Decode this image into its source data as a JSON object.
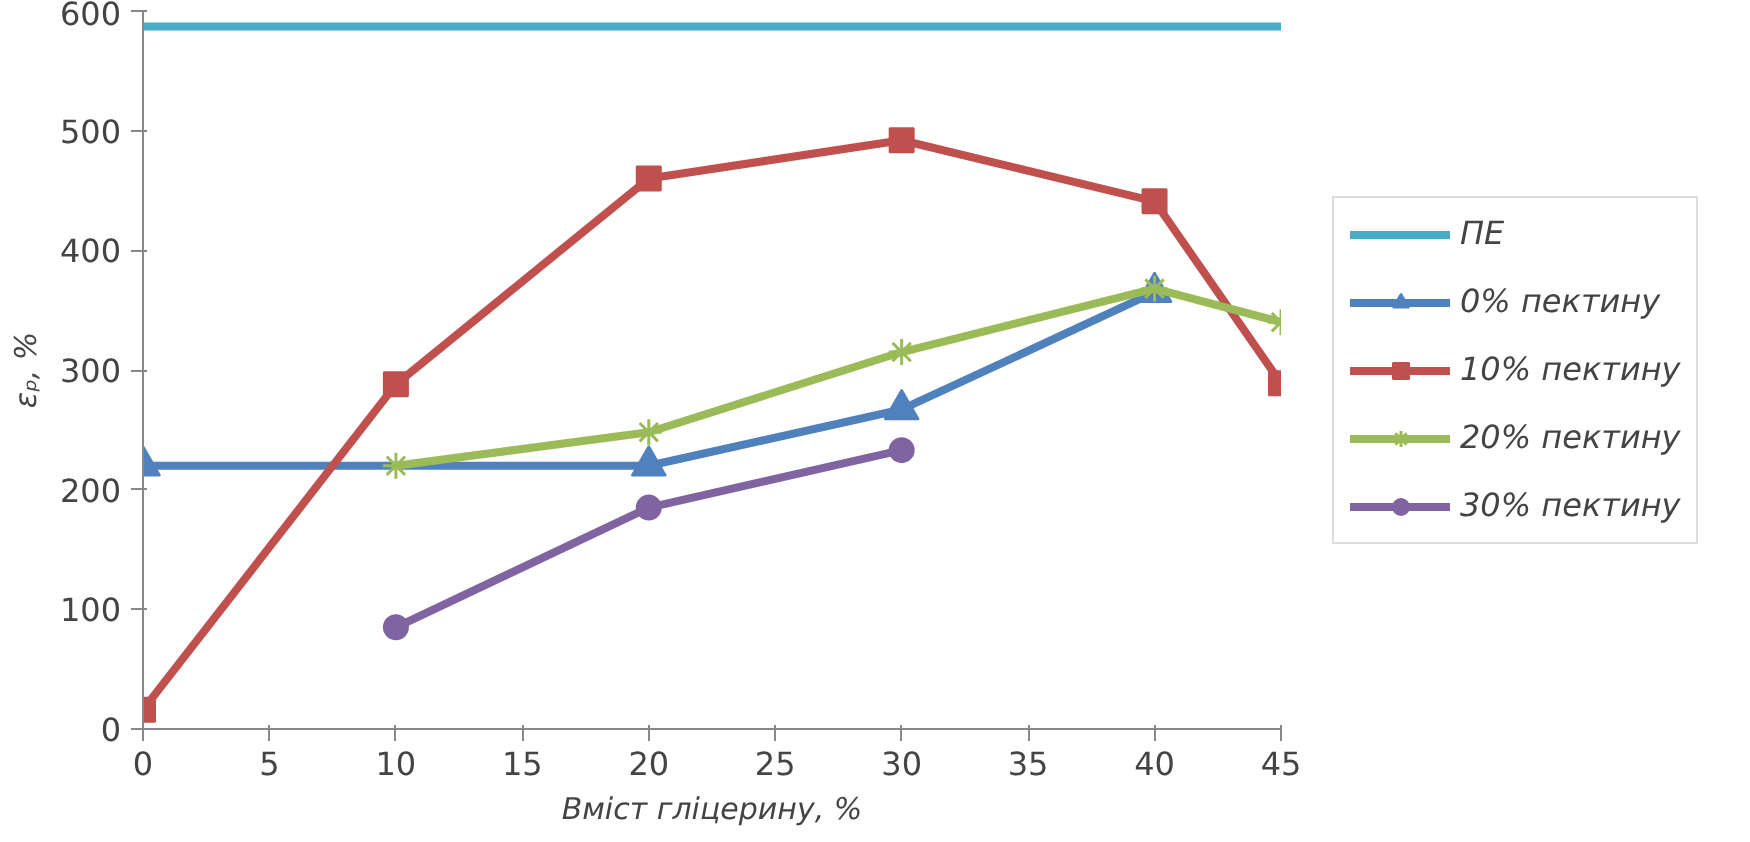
{
  "chart_data": {
    "type": "line",
    "xlabel": "Вміст гліцерину, %",
    "ylabel": "εₚ, %",
    "xlim": [
      0,
      45
    ],
    "ylim": [
      0,
      600
    ],
    "xticks": [
      0,
      5,
      10,
      15,
      20,
      25,
      30,
      35,
      40,
      45
    ],
    "yticks": [
      0,
      100,
      200,
      300,
      400,
      500,
      600
    ],
    "grid": false,
    "legend": "right",
    "line_style": "solid",
    "series": [
      {
        "name": "ПЕ",
        "color": "#4bacc6",
        "marker": "none",
        "x": [
          0,
          45
        ],
        "values": [
          587,
          587
        ]
      },
      {
        "name": "0% пектину",
        "color": "#4f81bd",
        "marker": "triangle",
        "x": [
          0,
          20,
          30,
          40
        ],
        "values": [
          220,
          220,
          267,
          365
        ]
      },
      {
        "name": "10% пектину",
        "color": "#c0504d",
        "marker": "square",
        "x": [
          0,
          10,
          20,
          30,
          40,
          45
        ],
        "values": [
          16,
          288,
          460,
          492,
          441,
          289
        ]
      },
      {
        "name": "20% пектину",
        "color": "#9bbb59",
        "marker": "cross",
        "x": [
          10,
          20,
          30,
          40,
          45
        ],
        "values": [
          220,
          248,
          315,
          368,
          340
        ]
      },
      {
        "name": "30% пектину",
        "color": "#8064a2",
        "marker": "circle",
        "x": [
          10,
          20,
          30
        ],
        "values": [
          85,
          185,
          233
        ]
      }
    ]
  }
}
